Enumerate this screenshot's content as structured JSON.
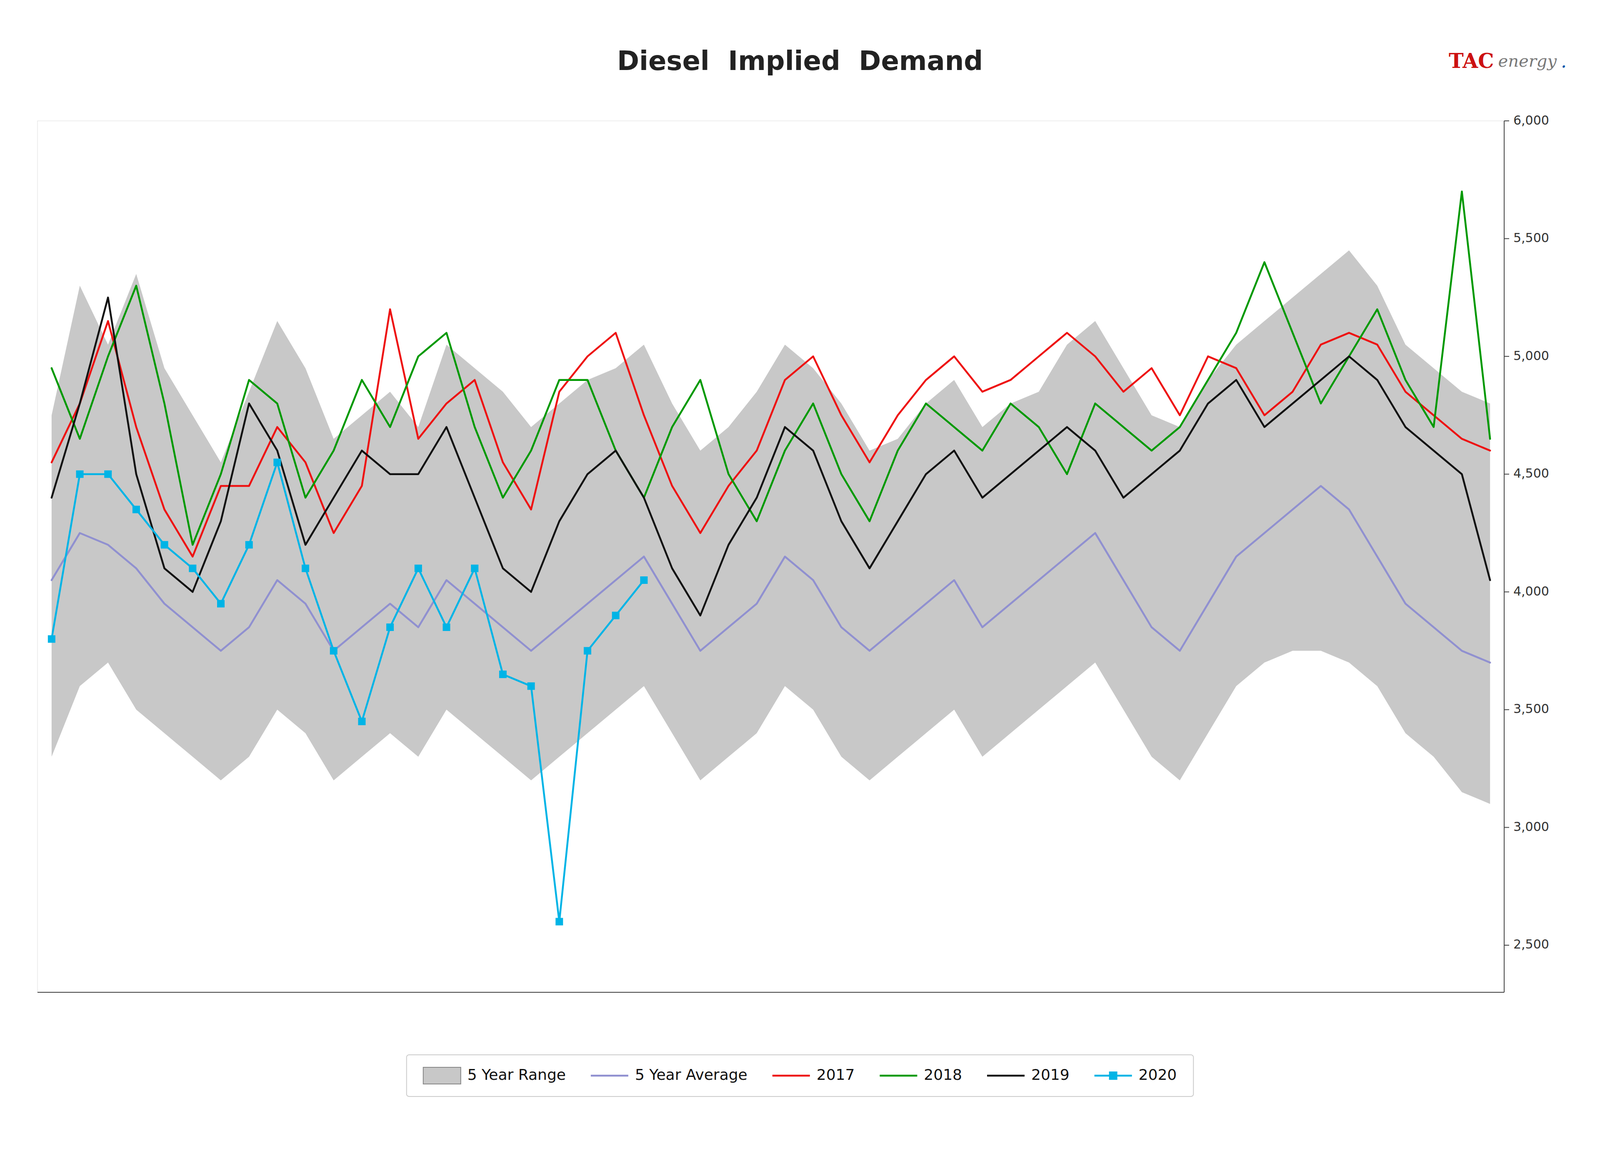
{
  "chart_data": {
    "type": "line",
    "title": "Diesel  Implied  Demand",
    "annotations": [
      "TAC",
      "energy",
      "."
    ],
    "categories": [
      null,
      null,
      null,
      null,
      null,
      null,
      null,
      null,
      null,
      null,
      null,
      null,
      null,
      null,
      null,
      null,
      null,
      null,
      null,
      null,
      null,
      null,
      null,
      null,
      null,
      null,
      null,
      null,
      null,
      null,
      null,
      null,
      null,
      null,
      null,
      null,
      null,
      null,
      null,
      null,
      null,
      null,
      null,
      null,
      null,
      null,
      null,
      null,
      null,
      null,
      null,
      null
    ],
    "series": [
      {
        "name": "5 Year Range",
        "type": "area",
        "color": "#c8c8c8",
        "values": [
          4750,
          5300,
          5050,
          5350,
          4950,
          4750,
          4550,
          4850,
          5150,
          4950,
          4650,
          4750,
          4850,
          4700,
          5050,
          4950,
          4850,
          4700,
          4800,
          4900,
          4950,
          5050,
          4800,
          4600,
          4700,
          4850,
          5050,
          4950,
          4800,
          4600,
          4650,
          4800,
          4900,
          4700,
          4800,
          4850,
          5050,
          5150,
          4950,
          4750,
          4700,
          4900,
          5050,
          5150,
          5250,
          5350,
          5450,
          5300,
          5050,
          4950,
          4850,
          4800
        ],
        "lower": [
          3300,
          3600,
          3700,
          3500,
          3400,
          3300,
          3200,
          3300,
          3500,
          3400,
          3200,
          3300,
          3400,
          3300,
          3500,
          3400,
          3300,
          3200,
          3300,
          3400,
          3500,
          3600,
          3400,
          3200,
          3300,
          3400,
          3600,
          3500,
          3300,
          3200,
          3300,
          3400,
          3500,
          3300,
          3400,
          3500,
          3600,
          3700,
          3500,
          3300,
          3200,
          3400,
          3600,
          3700,
          3750,
          3750,
          3700,
          3600,
          3400,
          3300,
          3150,
          3100
        ]
      },
      {
        "name": "5 Year Average",
        "type": "line",
        "color": "#9090d0",
        "values": [
          4050,
          4250,
          4200,
          4100,
          3950,
          3850,
          3750,
          3850,
          4050,
          3950,
          3750,
          3850,
          3950,
          3850,
          4050,
          3950,
          3850,
          3750,
          3850,
          3950,
          4050,
          4150,
          3950,
          3750,
          3850,
          3950,
          4150,
          4050,
          3850,
          3750,
          3850,
          3950,
          4050,
          3850,
          3950,
          4050,
          4150,
          4250,
          4050,
          3850,
          3750,
          3950,
          4150,
          4250,
          4350,
          4450,
          4350,
          4150,
          3950,
          3850,
          3750,
          3700
        ]
      },
      {
        "name": "2017",
        "type": "line",
        "color": "#ee1111",
        "values": [
          4550,
          4800,
          5150,
          4700,
          4350,
          4150,
          4450,
          4450,
          4700,
          4550,
          4250,
          4450,
          5200,
          4650,
          4800,
          4900,
          4550,
          4350,
          4850,
          5000,
          5100,
          4750,
          4450,
          4250,
          4450,
          4600,
          4900,
          5000,
          4750,
          4550,
          4750,
          4900,
          5000,
          4850,
          4900,
          5000,
          5100,
          5000,
          4850,
          4950,
          4750,
          5000,
          4950,
          4750,
          4850,
          5050,
          5100,
          5050,
          4850,
          4750,
          4650,
          4600
        ]
      },
      {
        "name": "2018",
        "type": "line",
        "color": "#009900",
        "values": [
          4950,
          4650,
          5000,
          5300,
          4800,
          4200,
          4500,
          4900,
          4800,
          4400,
          4600,
          4900,
          4700,
          5000,
          5100,
          4700,
          4400,
          4600,
          4900,
          4900,
          4600,
          4400,
          4700,
          4900,
          4500,
          4300,
          4600,
          4800,
          4500,
          4300,
          4600,
          4800,
          4700,
          4600,
          4800,
          4700,
          4500,
          4800,
          4700,
          4600,
          4700,
          4900,
          5100,
          5400,
          5100,
          4800,
          5000,
          5200,
          4900,
          4700,
          5700,
          4650
        ]
      },
      {
        "name": "2019",
        "type": "line",
        "color": "#111111",
        "values": [
          4400,
          4800,
          5250,
          4500,
          4100,
          4000,
          4300,
          4800,
          4600,
          4200,
          4400,
          4600,
          4500,
          4500,
          4700,
          4400,
          4100,
          4000,
          4300,
          4500,
          4600,
          4400,
          4100,
          3900,
          4200,
          4400,
          4700,
          4600,
          4300,
          4100,
          4300,
          4500,
          4600,
          4400,
          4500,
          4600,
          4700,
          4600,
          4400,
          4500,
          4600,
          4800,
          4900,
          4700,
          4800,
          4900,
          5000,
          4900,
          4700,
          4600,
          4500,
          4050
        ]
      },
      {
        "name": "2020",
        "type": "line",
        "color": "#00b4e6",
        "marker": "square",
        "values": [
          3800,
          4500,
          4500,
          4350,
          4200,
          4100,
          3950,
          4200,
          4550,
          4100,
          3750,
          3450,
          3850,
          4100,
          3850,
          4100,
          3650,
          3600,
          2600,
          3750,
          3900,
          4050,
          null,
          null,
          null,
          null,
          null,
          null,
          null,
          null,
          null,
          null,
          null,
          null,
          null,
          null,
          null,
          null,
          null,
          null,
          null,
          null,
          null,
          null,
          null,
          null,
          null,
          null,
          null,
          null,
          null,
          null
        ]
      }
    ],
    "ylim": [
      2300,
      6000
    ],
    "yticks": [
      {
        "value": 2500,
        "label": "2,500"
      },
      {
        "value": 3000,
        "label": "3,000"
      },
      {
        "value": 3500,
        "label": "3,500"
      },
      {
        "value": 4000,
        "label": "4,000"
      },
      {
        "value": 4500,
        "label": "4,500"
      },
      {
        "value": 5000,
        "label": "5,000"
      },
      {
        "value": 5500,
        "label": "5,500"
      },
      {
        "value": 6000,
        "label": "6,000"
      }
    ],
    "grid": false,
    "legend": "bottom",
    "tick_labels": "y"
  }
}
